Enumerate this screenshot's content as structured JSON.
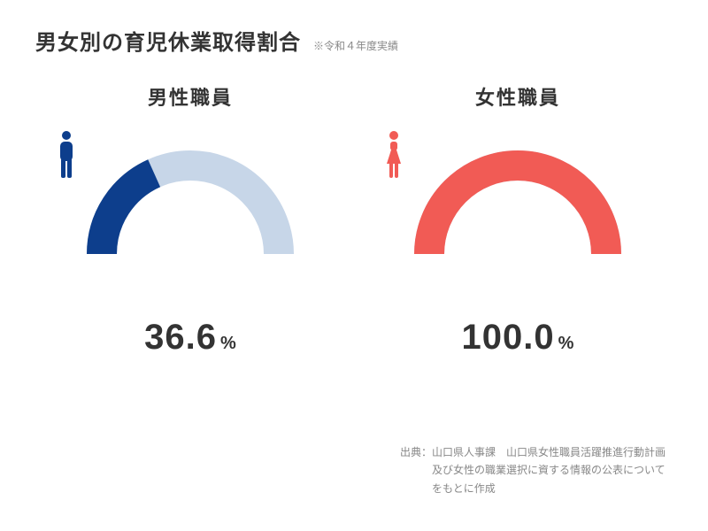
{
  "title": "男女別の育児休業取得割合",
  "subtitle": "※令和４年度実績",
  "gauge": {
    "type": "gauge",
    "stroke_width": 34,
    "radius": 100,
    "track_color": "#c7d6e8",
    "background_color": "#ffffff"
  },
  "male": {
    "label": "男性職員",
    "value": 36.6,
    "value_text": "36.6",
    "unit": "%",
    "fill_color": "#0d3e8c",
    "icon_color": "#0d3e8c"
  },
  "female": {
    "label": "女性職員",
    "value": 100.0,
    "value_text": "100.0",
    "unit": "%",
    "fill_color": "#f15b55",
    "icon_color": "#f15b55"
  },
  "source": {
    "line1": "出典：山口県人事課　山口県女性職員活躍推進行動計画",
    "line2": "　　　及び女性の職業選択に資する情報の公表について",
    "line3": "　　　をもとに作成"
  },
  "typography": {
    "title_fontsize": 24,
    "subtitle_fontsize": 12,
    "label_fontsize": 22,
    "value_fontsize": 40,
    "unit_fontsize": 20,
    "source_fontsize": 12,
    "text_color": "#333333",
    "muted_color": "#888888"
  }
}
